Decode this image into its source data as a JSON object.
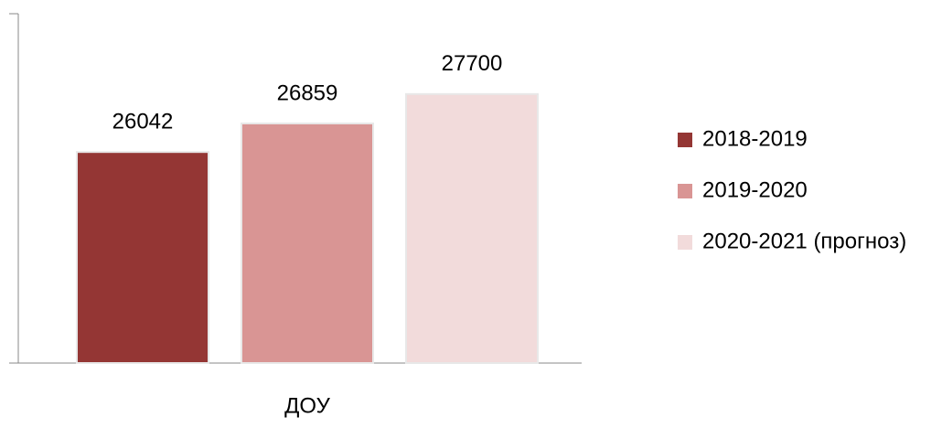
{
  "chart_data": {
    "type": "bar",
    "categories": [
      "ДОУ"
    ],
    "series": [
      {
        "name": "2018-2019",
        "color": "#943634",
        "values": [
          26042
        ]
      },
      {
        "name": "2019-2020",
        "color": "#d99594",
        "values": [
          26859
        ]
      },
      {
        "name": "2020-2021 (прогноз)",
        "color": "#f2dbdb",
        "values": [
          27700
        ]
      }
    ],
    "ylim": [
      20000,
      30000
    ],
    "legend": "right"
  }
}
